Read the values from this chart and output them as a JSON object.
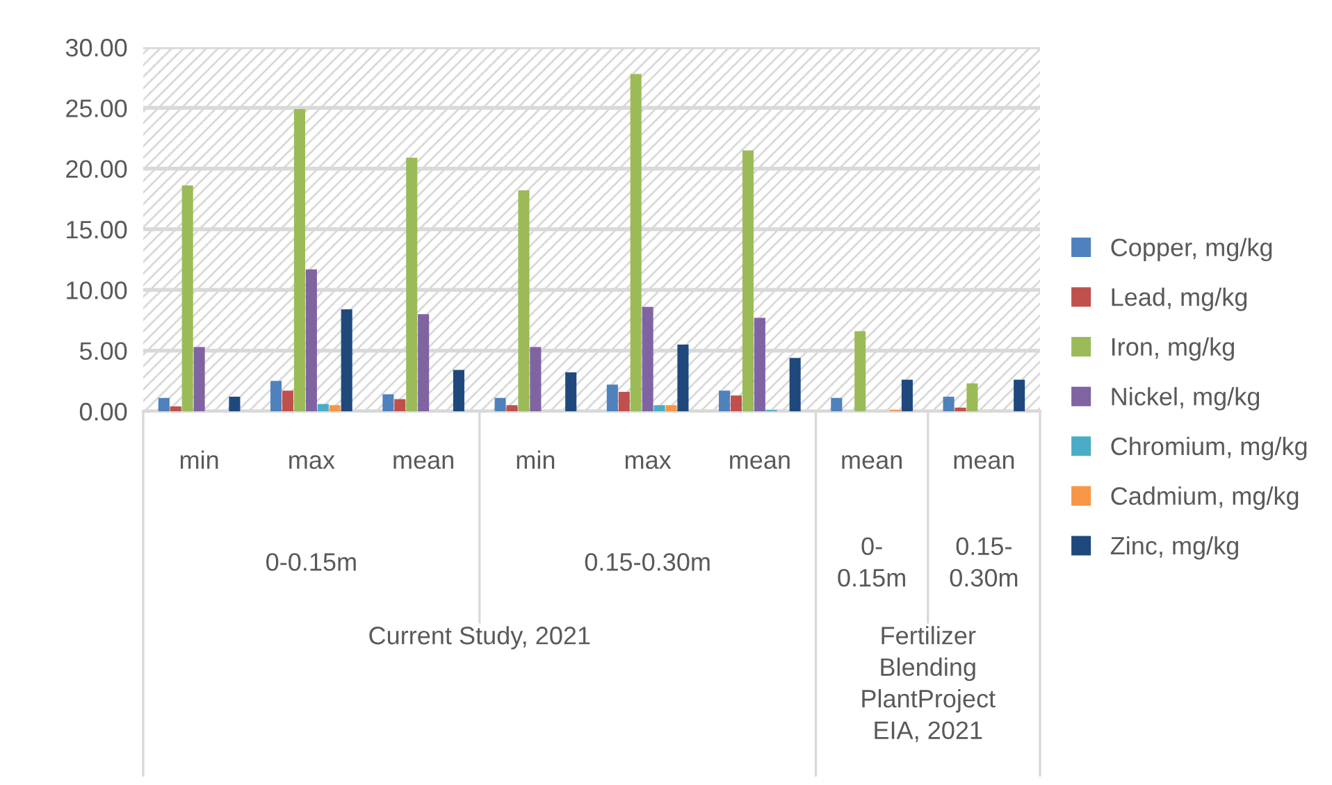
{
  "chart_data": {
    "type": "bar",
    "categories": [
      "min",
      "max",
      "mean",
      "min",
      "max",
      "mean",
      "mean",
      "mean"
    ],
    "series": [
      {
        "name": "Copper, mg/kg",
        "color": "#4f81bd",
        "values": [
          1.1,
          2.5,
          1.4,
          1.1,
          2.2,
          1.7,
          1.1,
          1.2
        ]
      },
      {
        "name": "Lead, mg/kg",
        "color": "#c0504d",
        "values": [
          0.4,
          1.7,
          1.0,
          0.5,
          1.6,
          1.3,
          0,
          0.3
        ]
      },
      {
        "name": "Iron, mg/kg",
        "color": "#9bbb59",
        "values": [
          18.6,
          24.9,
          20.9,
          18.2,
          27.8,
          21.5,
          6.6,
          2.3
        ]
      },
      {
        "name": "Nickel, mg/kg",
        "color": "#8064a2",
        "values": [
          5.3,
          11.7,
          8.0,
          5.3,
          8.6,
          7.7,
          0,
          0
        ]
      },
      {
        "name": "Chromium, mg/kg",
        "color": "#4bacc6",
        "values": [
          0,
          0.6,
          0,
          0,
          0.5,
          0.1,
          0,
          0
        ]
      },
      {
        "name": "Cadmium, mg/kg",
        "color": "#f79646",
        "values": [
          0,
          0.5,
          0,
          0,
          0.5,
          0,
          0.1,
          0
        ]
      },
      {
        "name": "Zinc, mg/kg",
        "color": "#1f497d",
        "values": [
          1.2,
          8.4,
          3.4,
          3.2,
          5.5,
          4.4,
          2.6,
          2.6
        ]
      }
    ],
    "annotations": [
      "0-0.15m",
      "0.15-0.30m",
      "0-\n0.15m",
      "0.15-\n0.30m",
      "Current Study, 2021",
      "Fertilizer\nBlending\nPlantProject\nEIA, 2021"
    ],
    "ylim": [
      0,
      30
    ],
    "yticks": [
      {
        "value": 0,
        "label": "0.00"
      },
      {
        "value": 5,
        "label": "5.00"
      },
      {
        "value": 10,
        "label": "10.00"
      },
      {
        "value": 15,
        "label": "15.00"
      },
      {
        "value": 20,
        "label": "20.00"
      },
      {
        "value": 25,
        "label": "25.00"
      },
      {
        "value": 30,
        "label": "30.00"
      }
    ],
    "grid": "y",
    "legend": "right"
  }
}
